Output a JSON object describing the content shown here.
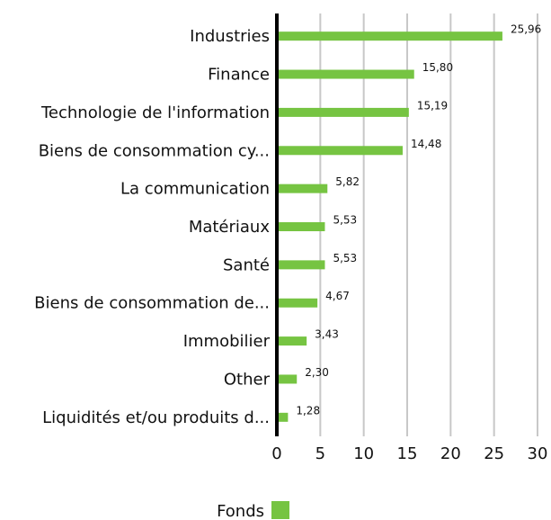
{
  "chart_data": {
    "type": "bar",
    "orientation": "horizontal",
    "categories": [
      "Industries",
      "Finance",
      "Technologie de l'information",
      "Biens de consommation cy...",
      "La communication",
      "Matériaux",
      "Santé",
      "Biens de consommation de...",
      "Immobilier",
      "Other",
      "Liquidités et/ou produits d..."
    ],
    "series": [
      {
        "name": "Fonds",
        "color": "#76c442",
        "values": [
          25.96,
          15.8,
          15.19,
          14.48,
          5.82,
          5.53,
          5.53,
          4.67,
          3.43,
          2.3,
          1.28
        ],
        "value_labels": [
          "25,96",
          "15,80",
          "15,19",
          "14,48",
          "5,82",
          "5,53",
          "5,53",
          "4,67",
          "3,43",
          "2,30",
          "1,28"
        ]
      }
    ],
    "xlim": [
      0,
      30
    ],
    "xticks": [
      0,
      5,
      10,
      15,
      20,
      25,
      30
    ],
    "grid": true
  }
}
